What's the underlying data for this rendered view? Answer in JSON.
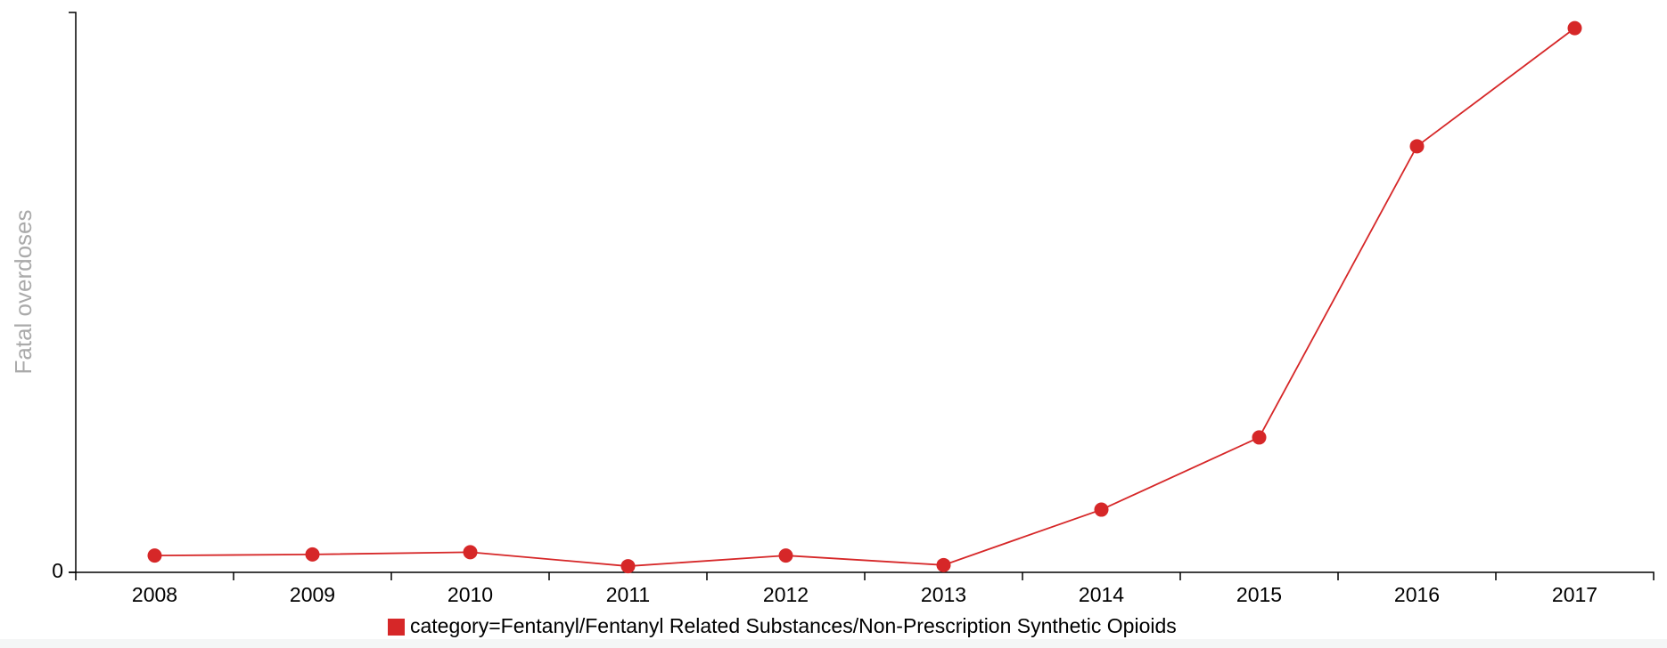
{
  "chart_data": {
    "type": "line",
    "y_label": "Fatal overdoses",
    "categories": [
      "2008",
      "2009",
      "2010",
      "2011",
      "2012",
      "2013",
      "2014",
      "2015",
      "2016",
      "2017"
    ],
    "series": [
      {
        "name": "category=Fentanyl/Fentanyl Related Substances/Non-Prescription Synthetic Opioids",
        "color": "#d62728",
        "values": [
          3.0,
          3.2,
          3.6,
          1.1,
          3.0,
          1.3,
          11.2,
          24.1,
          76.1,
          97.2
        ]
      }
    ],
    "ylim": [
      0,
      100
    ],
    "yticks": [
      0
    ],
    "grid": false,
    "legend": "bottom"
  }
}
